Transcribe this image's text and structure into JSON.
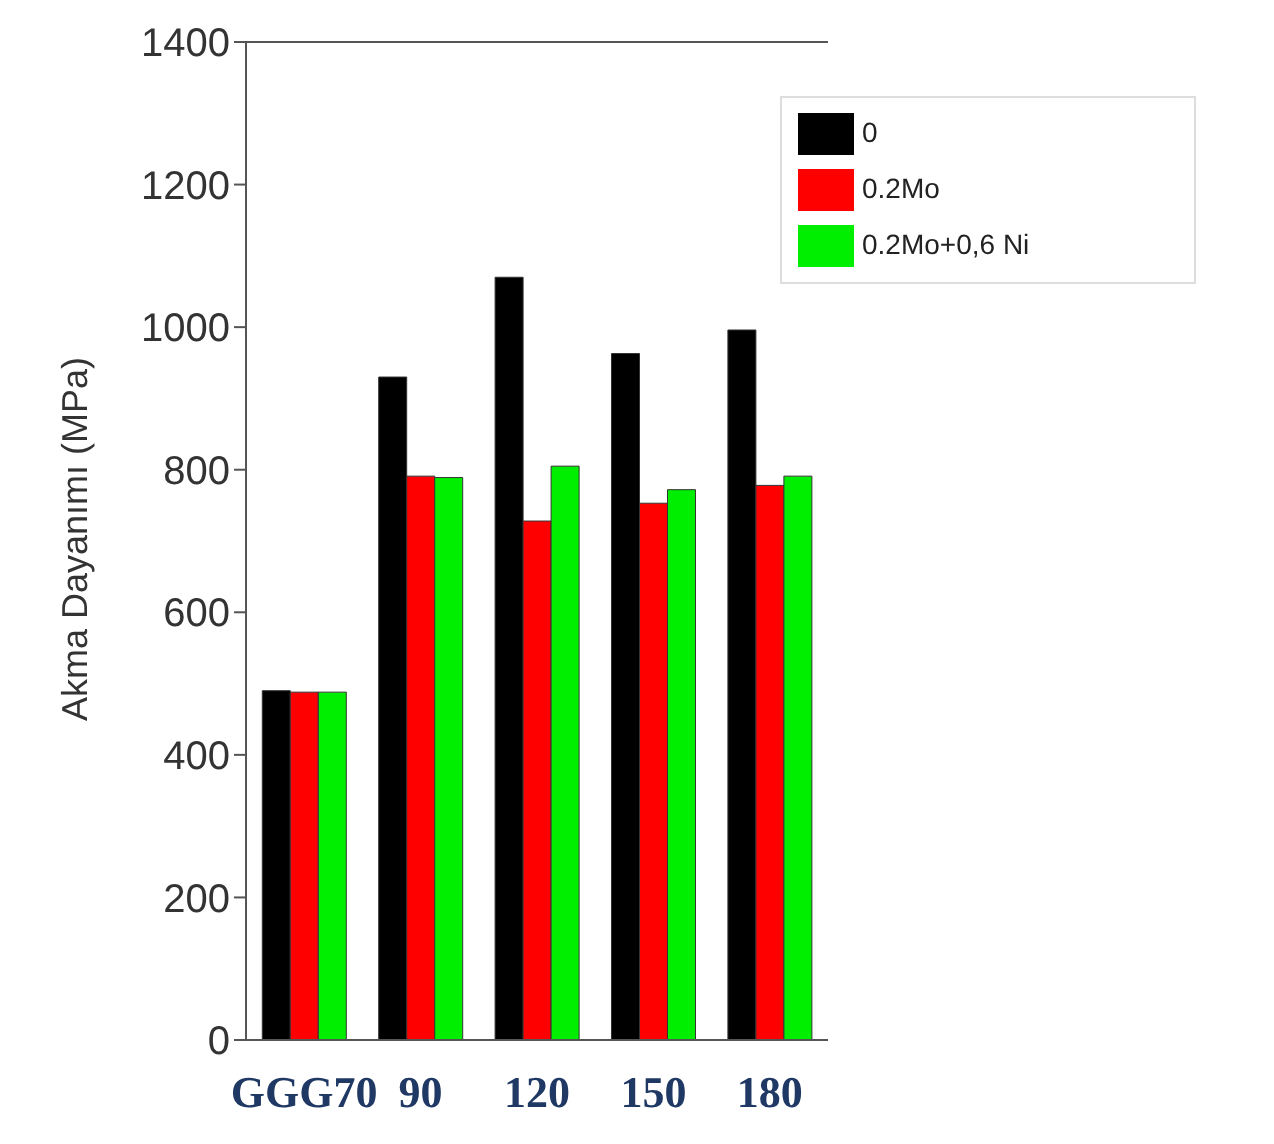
{
  "chart_data": {
    "type": "bar",
    "ylabel": "Akma Dayanımı (MPa)",
    "categories": [
      "GGG70",
      "90",
      "120",
      "150",
      "180"
    ],
    "series": [
      {
        "name": "0",
        "color": "#000000",
        "values": [
          490,
          930,
          1070,
          963,
          996
        ]
      },
      {
        "name": "0.2Mo",
        "color": "#ff0000",
        "values": [
          488,
          791,
          728,
          753,
          778
        ]
      },
      {
        "name": "0.2Mo+0,6 Ni",
        "color": "#00ee00",
        "values": [
          488,
          789,
          805,
          772,
          791
        ]
      }
    ],
    "ylim": [
      0,
      1400
    ],
    "yticks": [
      0,
      200,
      400,
      600,
      800,
      1000,
      1200,
      1400
    ],
    "grid": false,
    "legend": "top right"
  }
}
